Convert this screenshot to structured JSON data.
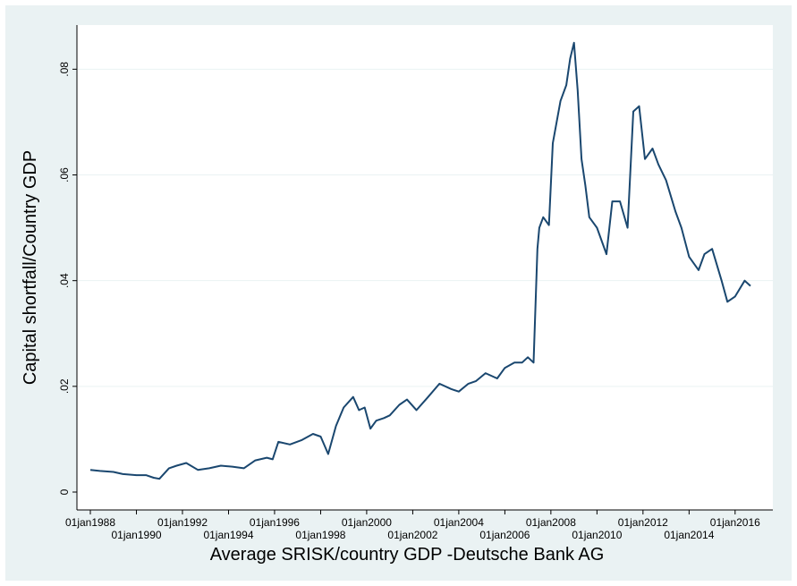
{
  "chart_data": {
    "type": "line",
    "title": "",
    "xlabel": "Average SRISK/country GDP -Deutsche Bank AG",
    "ylabel": "Capital shortfall/Country GDP",
    "xlim": [
      "1988-01-01",
      "2016-09-01"
    ],
    "ylim": [
      0,
      0.087
    ],
    "grid": true,
    "legend": "none",
    "colors": {
      "line": "#1a476f",
      "background": "#eaf2f3",
      "plot_bg": "#ffffff",
      "grid": "#eaf2f3"
    },
    "x_ticks": [
      {
        "date": "1988-01-01",
        "label": "01jan1988"
      },
      {
        "date": "1990-01-01",
        "label": "01jan1990"
      },
      {
        "date": "1992-01-01",
        "label": "01jan1992"
      },
      {
        "date": "1994-01-01",
        "label": "01jan1994"
      },
      {
        "date": "1996-01-01",
        "label": "01jan1996"
      },
      {
        "date": "1998-01-01",
        "label": "01jan1998"
      },
      {
        "date": "2000-01-01",
        "label": "01jan2000"
      },
      {
        "date": "2002-01-01",
        "label": "01jan2002"
      },
      {
        "date": "2004-01-01",
        "label": "01jan2004"
      },
      {
        "date": "2006-01-01",
        "label": "01jan2006"
      },
      {
        "date": "2008-01-01",
        "label": "01jan2008"
      },
      {
        "date": "2010-01-01",
        "label": "01jan2010"
      },
      {
        "date": "2012-01-01",
        "label": "01jan2012"
      },
      {
        "date": "2014-01-01",
        "label": "01jan2014"
      },
      {
        "date": "2016-01-01",
        "label": "01jan2016"
      }
    ],
    "y_ticks": [
      {
        "value": 0,
        "label": "0"
      },
      {
        "value": 0.02,
        "label": ".02"
      },
      {
        "value": 0.04,
        "label": ".04"
      },
      {
        "value": 0.06,
        "label": ".06"
      },
      {
        "value": 0.08,
        "label": ".08"
      }
    ],
    "series": [
      {
        "x": [
          "1988-01-01",
          "1988-06-01",
          "1989-01-01",
          "1989-06-01",
          "1990-01-01",
          "1990-06-01",
          "1990-10-01",
          "1991-01-01",
          "1991-06-01",
          "1991-10-01",
          "1992-03-01",
          "1992-09-01",
          "1993-03-01",
          "1993-09-01",
          "1994-03-01",
          "1994-09-01",
          "1995-03-01",
          "1995-09-01",
          "1995-12-01",
          "1996-03-01",
          "1996-09-01",
          "1997-03-01",
          "1997-09-01",
          "1998-01-01",
          "1998-05-01",
          "1998-09-01",
          "1999-01-01",
          "1999-06-01",
          "1999-09-01",
          "1999-12-01",
          "2000-03-01",
          "2000-06-01",
          "2000-10-01",
          "2001-01-01",
          "2001-06-01",
          "2001-10-01",
          "2002-03-01",
          "2002-09-01",
          "2003-03-01",
          "2003-09-01",
          "2004-01-01",
          "2004-06-01",
          "2004-10-01",
          "2005-03-01",
          "2005-09-01",
          "2006-01-01",
          "2006-06-01",
          "2006-10-01",
          "2007-01-01",
          "2007-04-01",
          "2007-06-01",
          "2007-07-01",
          "2007-09-01",
          "2007-12-01",
          "2008-02-01",
          "2008-06-01",
          "2008-09-01",
          "2008-11-01",
          "2009-01-01",
          "2009-03-01",
          "2009-05-01",
          "2009-07-01",
          "2009-09-01",
          "2010-01-01",
          "2010-06-01",
          "2010-09-01",
          "2011-01-01",
          "2011-05-01",
          "2011-08-01",
          "2011-11-01",
          "2012-02-01",
          "2012-06-01",
          "2012-09-01",
          "2013-01-01",
          "2013-06-01",
          "2013-09-01",
          "2014-01-01",
          "2014-06-01",
          "2014-09-01",
          "2015-01-01",
          "2015-06-01",
          "2015-09-01",
          "2016-01-01",
          "2016-06-01",
          "2016-09-01"
        ],
        "y": [
          0.0042,
          0.004,
          0.0038,
          0.0034,
          0.0032,
          0.0032,
          0.0027,
          0.0025,
          0.0045,
          0.005,
          0.0055,
          0.0042,
          0.0045,
          0.005,
          0.0048,
          0.0045,
          0.006,
          0.0065,
          0.0062,
          0.0095,
          0.009,
          0.0098,
          0.011,
          0.0105,
          0.0072,
          0.0125,
          0.016,
          0.018,
          0.0155,
          0.016,
          0.012,
          0.0135,
          0.014,
          0.0145,
          0.0165,
          0.0175,
          0.0155,
          0.018,
          0.0205,
          0.0195,
          0.019,
          0.0205,
          0.021,
          0.0225,
          0.0215,
          0.0235,
          0.0245,
          0.0245,
          0.0255,
          0.0245,
          0.046,
          0.05,
          0.052,
          0.0505,
          0.066,
          0.074,
          0.077,
          0.082,
          0.085,
          0.076,
          0.063,
          0.058,
          0.052,
          0.05,
          0.045,
          0.055,
          0.055,
          0.05,
          0.072,
          0.073,
          0.063,
          0.065,
          0.062,
          0.059,
          0.053,
          0.05,
          0.0445,
          0.042,
          0.045,
          0.046,
          0.04,
          0.036,
          0.037,
          0.04,
          0.039
        ]
      }
    ]
  }
}
